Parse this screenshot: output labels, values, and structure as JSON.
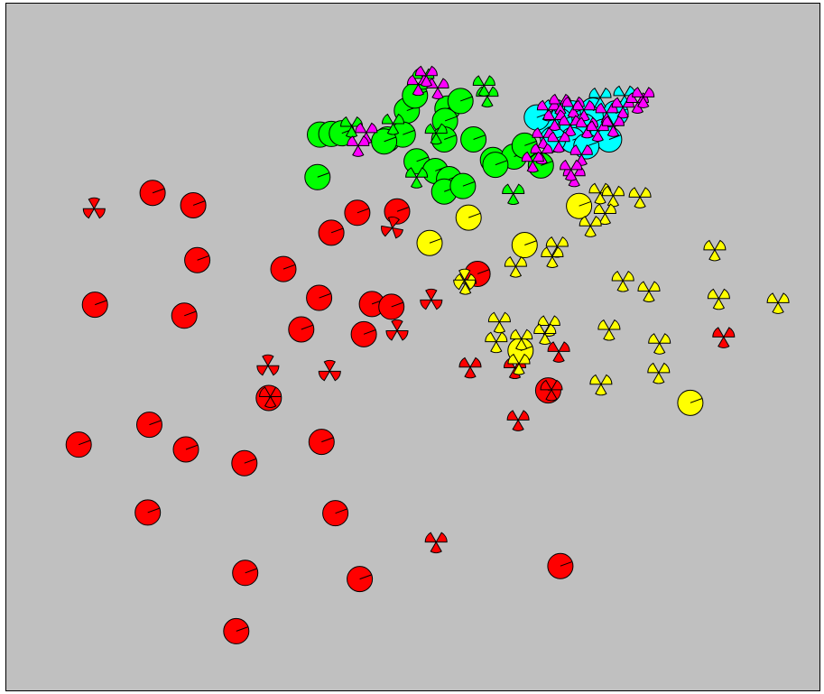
{
  "colors": {
    "background": "#c0c0c0",
    "frame": "#000000",
    "red": "#ff0000",
    "yellow": "#ffff00",
    "green": "#00ff00",
    "cyan": "#00ffff",
    "magenta": "#ff00ff"
  },
  "chart_data": {
    "type": "scatter",
    "title": "",
    "xlabel": "",
    "ylabel": "",
    "grid": false,
    "legend": "none",
    "xlim": [
      0,
      100
    ],
    "ylim": [
      0,
      100
    ],
    "marker_types": [
      "disc",
      "fan"
    ],
    "points": [
      {
        "x": 17.9,
        "y": 72.4,
        "c": "red",
        "m": "disc",
        "a": 20
      },
      {
        "x": 22.9,
        "y": 70.6,
        "c": "red",
        "m": "disc",
        "a": 20
      },
      {
        "x": 23.4,
        "y": 62.6,
        "c": "red",
        "m": "disc",
        "a": 20
      },
      {
        "x": 10.8,
        "y": 56.1,
        "c": "red",
        "m": "disc",
        "a": 20
      },
      {
        "x": 21.8,
        "y": 54.5,
        "c": "red",
        "m": "disc",
        "a": 20
      },
      {
        "x": 34.0,
        "y": 61.3,
        "c": "red",
        "m": "disc",
        "a": 20
      },
      {
        "x": 38.4,
        "y": 57.1,
        "c": "red",
        "m": "disc",
        "a": 20
      },
      {
        "x": 39.9,
        "y": 66.6,
        "c": "red",
        "m": "disc",
        "a": 20
      },
      {
        "x": 43.1,
        "y": 69.5,
        "c": "red",
        "m": "disc",
        "a": 20
      },
      {
        "x": 48.0,
        "y": 69.7,
        "c": "red",
        "m": "disc",
        "a": 20
      },
      {
        "x": 44.9,
        "y": 56.2,
        "c": "red",
        "m": "disc",
        "a": 20
      },
      {
        "x": 47.3,
        "y": 55.8,
        "c": "red",
        "m": "disc",
        "a": 20
      },
      {
        "x": 36.2,
        "y": 52.5,
        "c": "red",
        "m": "disc",
        "a": 20
      },
      {
        "x": 43.9,
        "y": 51.8,
        "c": "red",
        "m": "disc",
        "a": 20
      },
      {
        "x": 57.9,
        "y": 60.6,
        "c": "red",
        "m": "disc",
        "a": 20
      },
      {
        "x": 32.2,
        "y": 42.5,
        "c": "red",
        "m": "disc",
        "a": 20
      },
      {
        "x": 66.6,
        "y": 43.6,
        "c": "red",
        "m": "disc",
        "a": 20
      },
      {
        "x": 8.8,
        "y": 35.7,
        "c": "red",
        "m": "disc",
        "a": 20
      },
      {
        "x": 17.5,
        "y": 38.6,
        "c": "red",
        "m": "disc",
        "a": 20
      },
      {
        "x": 22.0,
        "y": 35.0,
        "c": "red",
        "m": "disc",
        "a": 20
      },
      {
        "x": 29.2,
        "y": 33.0,
        "c": "red",
        "m": "disc",
        "a": 20
      },
      {
        "x": 38.7,
        "y": 36.1,
        "c": "red",
        "m": "disc",
        "a": 20
      },
      {
        "x": 17.3,
        "y": 25.8,
        "c": "red",
        "m": "disc",
        "a": 20
      },
      {
        "x": 40.4,
        "y": 25.7,
        "c": "red",
        "m": "disc",
        "a": 20
      },
      {
        "x": 29.3,
        "y": 17.0,
        "c": "red",
        "m": "disc",
        "a": 20
      },
      {
        "x": 43.4,
        "y": 16.1,
        "c": "red",
        "m": "disc",
        "a": 20
      },
      {
        "x": 68.1,
        "y": 18.0,
        "c": "red",
        "m": "disc",
        "a": 20
      },
      {
        "x": 28.2,
        "y": 8.5,
        "c": "red",
        "m": "disc",
        "a": 20
      },
      {
        "x": 10.7,
        "y": 70.1,
        "c": "red",
        "m": "fan",
        "a": 210
      },
      {
        "x": 47.4,
        "y": 67.3,
        "c": "red",
        "m": "fan",
        "a": 200
      },
      {
        "x": 52.2,
        "y": 56.8,
        "c": "red",
        "m": "fan",
        "a": 210
      },
      {
        "x": 48.0,
        "y": 52.3,
        "c": "red",
        "m": "fan",
        "a": 210
      },
      {
        "x": 32.1,
        "y": 47.2,
        "c": "red",
        "m": "fan",
        "a": 210
      },
      {
        "x": 39.7,
        "y": 46.4,
        "c": "red",
        "m": "fan",
        "a": 210
      },
      {
        "x": 57.0,
        "y": 47.0,
        "c": "red",
        "m": "fan",
        "a": 270
      },
      {
        "x": 62.5,
        "y": 46.9,
        "c": "red",
        "m": "fan",
        "a": 270
      },
      {
        "x": 67.9,
        "y": 49.3,
        "c": "red",
        "m": "fan",
        "a": 270
      },
      {
        "x": 88.2,
        "y": 51.4,
        "c": "red",
        "m": "fan",
        "a": 270
      },
      {
        "x": 62.9,
        "y": 39.3,
        "c": "red",
        "m": "fan",
        "a": 270
      },
      {
        "x": 52.8,
        "y": 21.5,
        "c": "red",
        "m": "fan",
        "a": 270
      },
      {
        "x": 32.4,
        "y": 42.7,
        "c": "red",
        "m": "fan",
        "a": 270
      },
      {
        "x": 67.0,
        "y": 43.7,
        "c": "red",
        "m": "fan",
        "a": 270
      },
      {
        "x": 70.4,
        "y": 70.5,
        "c": "yellow",
        "m": "disc",
        "a": 20
      },
      {
        "x": 56.8,
        "y": 68.8,
        "c": "yellow",
        "m": "disc",
        "a": 20
      },
      {
        "x": 52.0,
        "y": 65.1,
        "c": "yellow",
        "m": "disc",
        "a": 20
      },
      {
        "x": 63.7,
        "y": 64.8,
        "c": "yellow",
        "m": "disc",
        "a": 20
      },
      {
        "x": 63.2,
        "y": 49.4,
        "c": "yellow",
        "m": "disc",
        "a": 20
      },
      {
        "x": 84.1,
        "y": 41.8,
        "c": "yellow",
        "m": "disc",
        "a": 20
      },
      {
        "x": 73.0,
        "y": 72.4,
        "c": "yellow",
        "m": "fan",
        "a": 270
      },
      {
        "x": 74.6,
        "y": 72.0,
        "c": "yellow",
        "m": "fan",
        "a": 270
      },
      {
        "x": 77.9,
        "y": 71.8,
        "c": "yellow",
        "m": "fan",
        "a": 270
      },
      {
        "x": 73.6,
        "y": 69.4,
        "c": "yellow",
        "m": "fan",
        "a": 270
      },
      {
        "x": 71.8,
        "y": 67.6,
        "c": "yellow",
        "m": "fan",
        "a": 270
      },
      {
        "x": 67.7,
        "y": 64.6,
        "c": "yellow",
        "m": "fan",
        "a": 270
      },
      {
        "x": 67.1,
        "y": 63.1,
        "c": "yellow",
        "m": "fan",
        "a": 270
      },
      {
        "x": 87.1,
        "y": 64.1,
        "c": "yellow",
        "m": "fan",
        "a": 270
      },
      {
        "x": 62.6,
        "y": 61.7,
        "c": "yellow",
        "m": "fan",
        "a": 270
      },
      {
        "x": 56.4,
        "y": 59.2,
        "c": "yellow",
        "m": "fan",
        "a": 270
      },
      {
        "x": 75.8,
        "y": 59.6,
        "c": "yellow",
        "m": "fan",
        "a": 270
      },
      {
        "x": 79.0,
        "y": 58.1,
        "c": "yellow",
        "m": "fan",
        "a": 270
      },
      {
        "x": 87.6,
        "y": 57.0,
        "c": "yellow",
        "m": "fan",
        "a": 270
      },
      {
        "x": 94.9,
        "y": 56.4,
        "c": "yellow",
        "m": "fan",
        "a": 270
      },
      {
        "x": 60.6,
        "y": 53.6,
        "c": "yellow",
        "m": "fan",
        "a": 270
      },
      {
        "x": 66.7,
        "y": 53.1,
        "c": "yellow",
        "m": "fan",
        "a": 270
      },
      {
        "x": 74.1,
        "y": 52.5,
        "c": "yellow",
        "m": "fan",
        "a": 270
      },
      {
        "x": 60.2,
        "y": 50.7,
        "c": "yellow",
        "m": "fan",
        "a": 270
      },
      {
        "x": 63.3,
        "y": 51.1,
        "c": "yellow",
        "m": "fan",
        "a": 270
      },
      {
        "x": 66.2,
        "y": 51.9,
        "c": "yellow",
        "m": "fan",
        "a": 270
      },
      {
        "x": 80.3,
        "y": 50.5,
        "c": "yellow",
        "m": "fan",
        "a": 270
      },
      {
        "x": 80.2,
        "y": 46.2,
        "c": "yellow",
        "m": "fan",
        "a": 270
      },
      {
        "x": 73.1,
        "y": 44.5,
        "c": "yellow",
        "m": "fan",
        "a": 270
      },
      {
        "x": 63.0,
        "y": 47.5,
        "c": "yellow",
        "m": "fan",
        "a": 270
      },
      {
        "x": 56.3,
        "y": 59.7,
        "c": "yellow",
        "m": "fan",
        "a": 210
      },
      {
        "x": 49.2,
        "y": 84.4,
        "c": "green",
        "m": "disc",
        "a": 20
      },
      {
        "x": 54.2,
        "y": 84.7,
        "c": "green",
        "m": "disc",
        "a": 20
      },
      {
        "x": 55.8,
        "y": 85.8,
        "c": "green",
        "m": "disc",
        "a": 20
      },
      {
        "x": 50.2,
        "y": 86.6,
        "c": "green",
        "m": "disc",
        "a": 20
      },
      {
        "x": 53.9,
        "y": 82.9,
        "c": "green",
        "m": "disc",
        "a": 20
      },
      {
        "x": 38.5,
        "y": 80.9,
        "c": "green",
        "m": "disc",
        "a": 20
      },
      {
        "x": 39.9,
        "y": 81.0,
        "c": "green",
        "m": "disc",
        "a": 20
      },
      {
        "x": 41.2,
        "y": 81.1,
        "c": "green",
        "m": "disc",
        "a": 20
      },
      {
        "x": 46.8,
        "y": 80.2,
        "c": "green",
        "m": "disc",
        "a": 20
      },
      {
        "x": 48.7,
        "y": 80.9,
        "c": "green",
        "m": "disc",
        "a": 20
      },
      {
        "x": 53.8,
        "y": 80.2,
        "c": "green",
        "m": "disc",
        "a": 20
      },
      {
        "x": 57.4,
        "y": 80.2,
        "c": "green",
        "m": "disc",
        "a": 20
      },
      {
        "x": 59.8,
        "y": 77.2,
        "c": "green",
        "m": "disc",
        "a": 20
      },
      {
        "x": 62.4,
        "y": 77.7,
        "c": "green",
        "m": "disc",
        "a": 20
      },
      {
        "x": 63.7,
        "y": 79.3,
        "c": "green",
        "m": "disc",
        "a": 20
      },
      {
        "x": 50.4,
        "y": 77.0,
        "c": "green",
        "m": "disc",
        "a": 20
      },
      {
        "x": 52.7,
        "y": 75.6,
        "c": "green",
        "m": "disc",
        "a": 20
      },
      {
        "x": 54.4,
        "y": 74.4,
        "c": "green",
        "m": "disc",
        "a": 20
      },
      {
        "x": 53.8,
        "y": 72.6,
        "c": "green",
        "m": "disc",
        "a": 20
      },
      {
        "x": 56.1,
        "y": 73.4,
        "c": "green",
        "m": "disc",
        "a": 20
      },
      {
        "x": 65.7,
        "y": 76.4,
        "c": "green",
        "m": "disc",
        "a": 20
      },
      {
        "x": 60.1,
        "y": 76.5,
        "c": "green",
        "m": "disc",
        "a": 20
      },
      {
        "x": 38.2,
        "y": 74.7,
        "c": "green",
        "m": "disc",
        "a": 20
      },
      {
        "x": 46.4,
        "y": 79.9,
        "c": "green",
        "m": "disc",
        "a": 20
      },
      {
        "x": 59.1,
        "y": 86.5,
        "c": "green",
        "m": "fan",
        "a": 270
      },
      {
        "x": 58.7,
        "y": 88.1,
        "c": "green",
        "m": "fan",
        "a": 270
      },
      {
        "x": 51.2,
        "y": 89.1,
        "c": "green",
        "m": "fan",
        "a": 270
      },
      {
        "x": 47.5,
        "y": 82.5,
        "c": "green",
        "m": "fan",
        "a": 270
      },
      {
        "x": 52.8,
        "y": 81.1,
        "c": "green",
        "m": "fan",
        "a": 270
      },
      {
        "x": 42.4,
        "y": 82.1,
        "c": "green",
        "m": "fan",
        "a": 270
      },
      {
        "x": 62.3,
        "y": 72.3,
        "c": "green",
        "m": "fan",
        "a": 270
      },
      {
        "x": 50.4,
        "y": 74.7,
        "c": "green",
        "m": "fan",
        "a": 270
      },
      {
        "x": 69.5,
        "y": 84.0,
        "c": "cyan",
        "m": "disc",
        "a": 20
      },
      {
        "x": 72.1,
        "y": 84.4,
        "c": "cyan",
        "m": "disc",
        "a": 20
      },
      {
        "x": 74.9,
        "y": 84.0,
        "c": "cyan",
        "m": "disc",
        "a": 20
      },
      {
        "x": 68.0,
        "y": 82.9,
        "c": "cyan",
        "m": "disc",
        "a": 20
      },
      {
        "x": 66.5,
        "y": 81.9,
        "c": "cyan",
        "m": "disc",
        "a": 20
      },
      {
        "x": 65.2,
        "y": 83.4,
        "c": "cyan",
        "m": "disc",
        "a": 20
      },
      {
        "x": 71.0,
        "y": 82.1,
        "c": "cyan",
        "m": "disc",
        "a": 20
      },
      {
        "x": 73.4,
        "y": 81.3,
        "c": "cyan",
        "m": "disc",
        "a": 20
      },
      {
        "x": 74.1,
        "y": 80.2,
        "c": "cyan",
        "m": "disc",
        "a": 20
      },
      {
        "x": 69.6,
        "y": 80.1,
        "c": "cyan",
        "m": "disc",
        "a": 20
      },
      {
        "x": 67.2,
        "y": 80.2,
        "c": "cyan",
        "m": "disc",
        "a": 20
      },
      {
        "x": 71.3,
        "y": 79.2,
        "c": "cyan",
        "m": "disc",
        "a": 20
      },
      {
        "x": 76.0,
        "y": 86.6,
        "c": "cyan",
        "m": "fan",
        "a": 270
      },
      {
        "x": 73.0,
        "y": 86.3,
        "c": "cyan",
        "m": "fan",
        "a": 270
      },
      {
        "x": 67.3,
        "y": 84.6,
        "c": "cyan",
        "m": "fan",
        "a": 270
      },
      {
        "x": 50.6,
        "y": 88.2,
        "c": "magenta",
        "m": "fan",
        "a": 270
      },
      {
        "x": 53.0,
        "y": 87.7,
        "c": "magenta",
        "m": "fan",
        "a": 270
      },
      {
        "x": 51.6,
        "y": 89.5,
        "c": "magenta",
        "m": "fan",
        "a": 270
      },
      {
        "x": 44.2,
        "y": 81.2,
        "c": "magenta",
        "m": "fan",
        "a": 270
      },
      {
        "x": 43.2,
        "y": 79.3,
        "c": "magenta",
        "m": "fan",
        "a": 270
      },
      {
        "x": 66.6,
        "y": 84.5,
        "c": "magenta",
        "m": "fan",
        "a": 270
      },
      {
        "x": 68.1,
        "y": 85.4,
        "c": "magenta",
        "m": "fan",
        "a": 270
      },
      {
        "x": 69.7,
        "y": 85.0,
        "c": "magenta",
        "m": "fan",
        "a": 270
      },
      {
        "x": 71.0,
        "y": 84.5,
        "c": "magenta",
        "m": "fan",
        "a": 270
      },
      {
        "x": 73.8,
        "y": 84.1,
        "c": "magenta",
        "m": "fan",
        "a": 270
      },
      {
        "x": 75.8,
        "y": 84.9,
        "c": "magenta",
        "m": "fan",
        "a": 270
      },
      {
        "x": 77.6,
        "y": 85.6,
        "c": "magenta",
        "m": "fan",
        "a": 270
      },
      {
        "x": 78.3,
        "y": 86.4,
        "c": "magenta",
        "m": "fan",
        "a": 270
      },
      {
        "x": 67.4,
        "y": 83.1,
        "c": "magenta",
        "m": "fan",
        "a": 270
      },
      {
        "x": 69.3,
        "y": 82.3,
        "c": "magenta",
        "m": "fan",
        "a": 270
      },
      {
        "x": 71.4,
        "y": 82.0,
        "c": "magenta",
        "m": "fan",
        "a": 270
      },
      {
        "x": 72.7,
        "y": 81.5,
        "c": "magenta",
        "m": "fan",
        "a": 270
      },
      {
        "x": 74.6,
        "y": 82.2,
        "c": "magenta",
        "m": "fan",
        "a": 270
      },
      {
        "x": 66.0,
        "y": 80.5,
        "c": "magenta",
        "m": "fan",
        "a": 270
      },
      {
        "x": 67.9,
        "y": 79.9,
        "c": "magenta",
        "m": "fan",
        "a": 270
      },
      {
        "x": 65.8,
        "y": 78.2,
        "c": "magenta",
        "m": "fan",
        "a": 270
      },
      {
        "x": 70.7,
        "y": 78.0,
        "c": "magenta",
        "m": "fan",
        "a": 270
      },
      {
        "x": 64.7,
        "y": 77.0,
        "c": "magenta",
        "m": "fan",
        "a": 270
      },
      {
        "x": 69.8,
        "y": 74.9,
        "c": "magenta",
        "m": "fan",
        "a": 270
      },
      {
        "x": 69.4,
        "y": 75.8,
        "c": "magenta",
        "m": "fan",
        "a": 270
      }
    ]
  }
}
